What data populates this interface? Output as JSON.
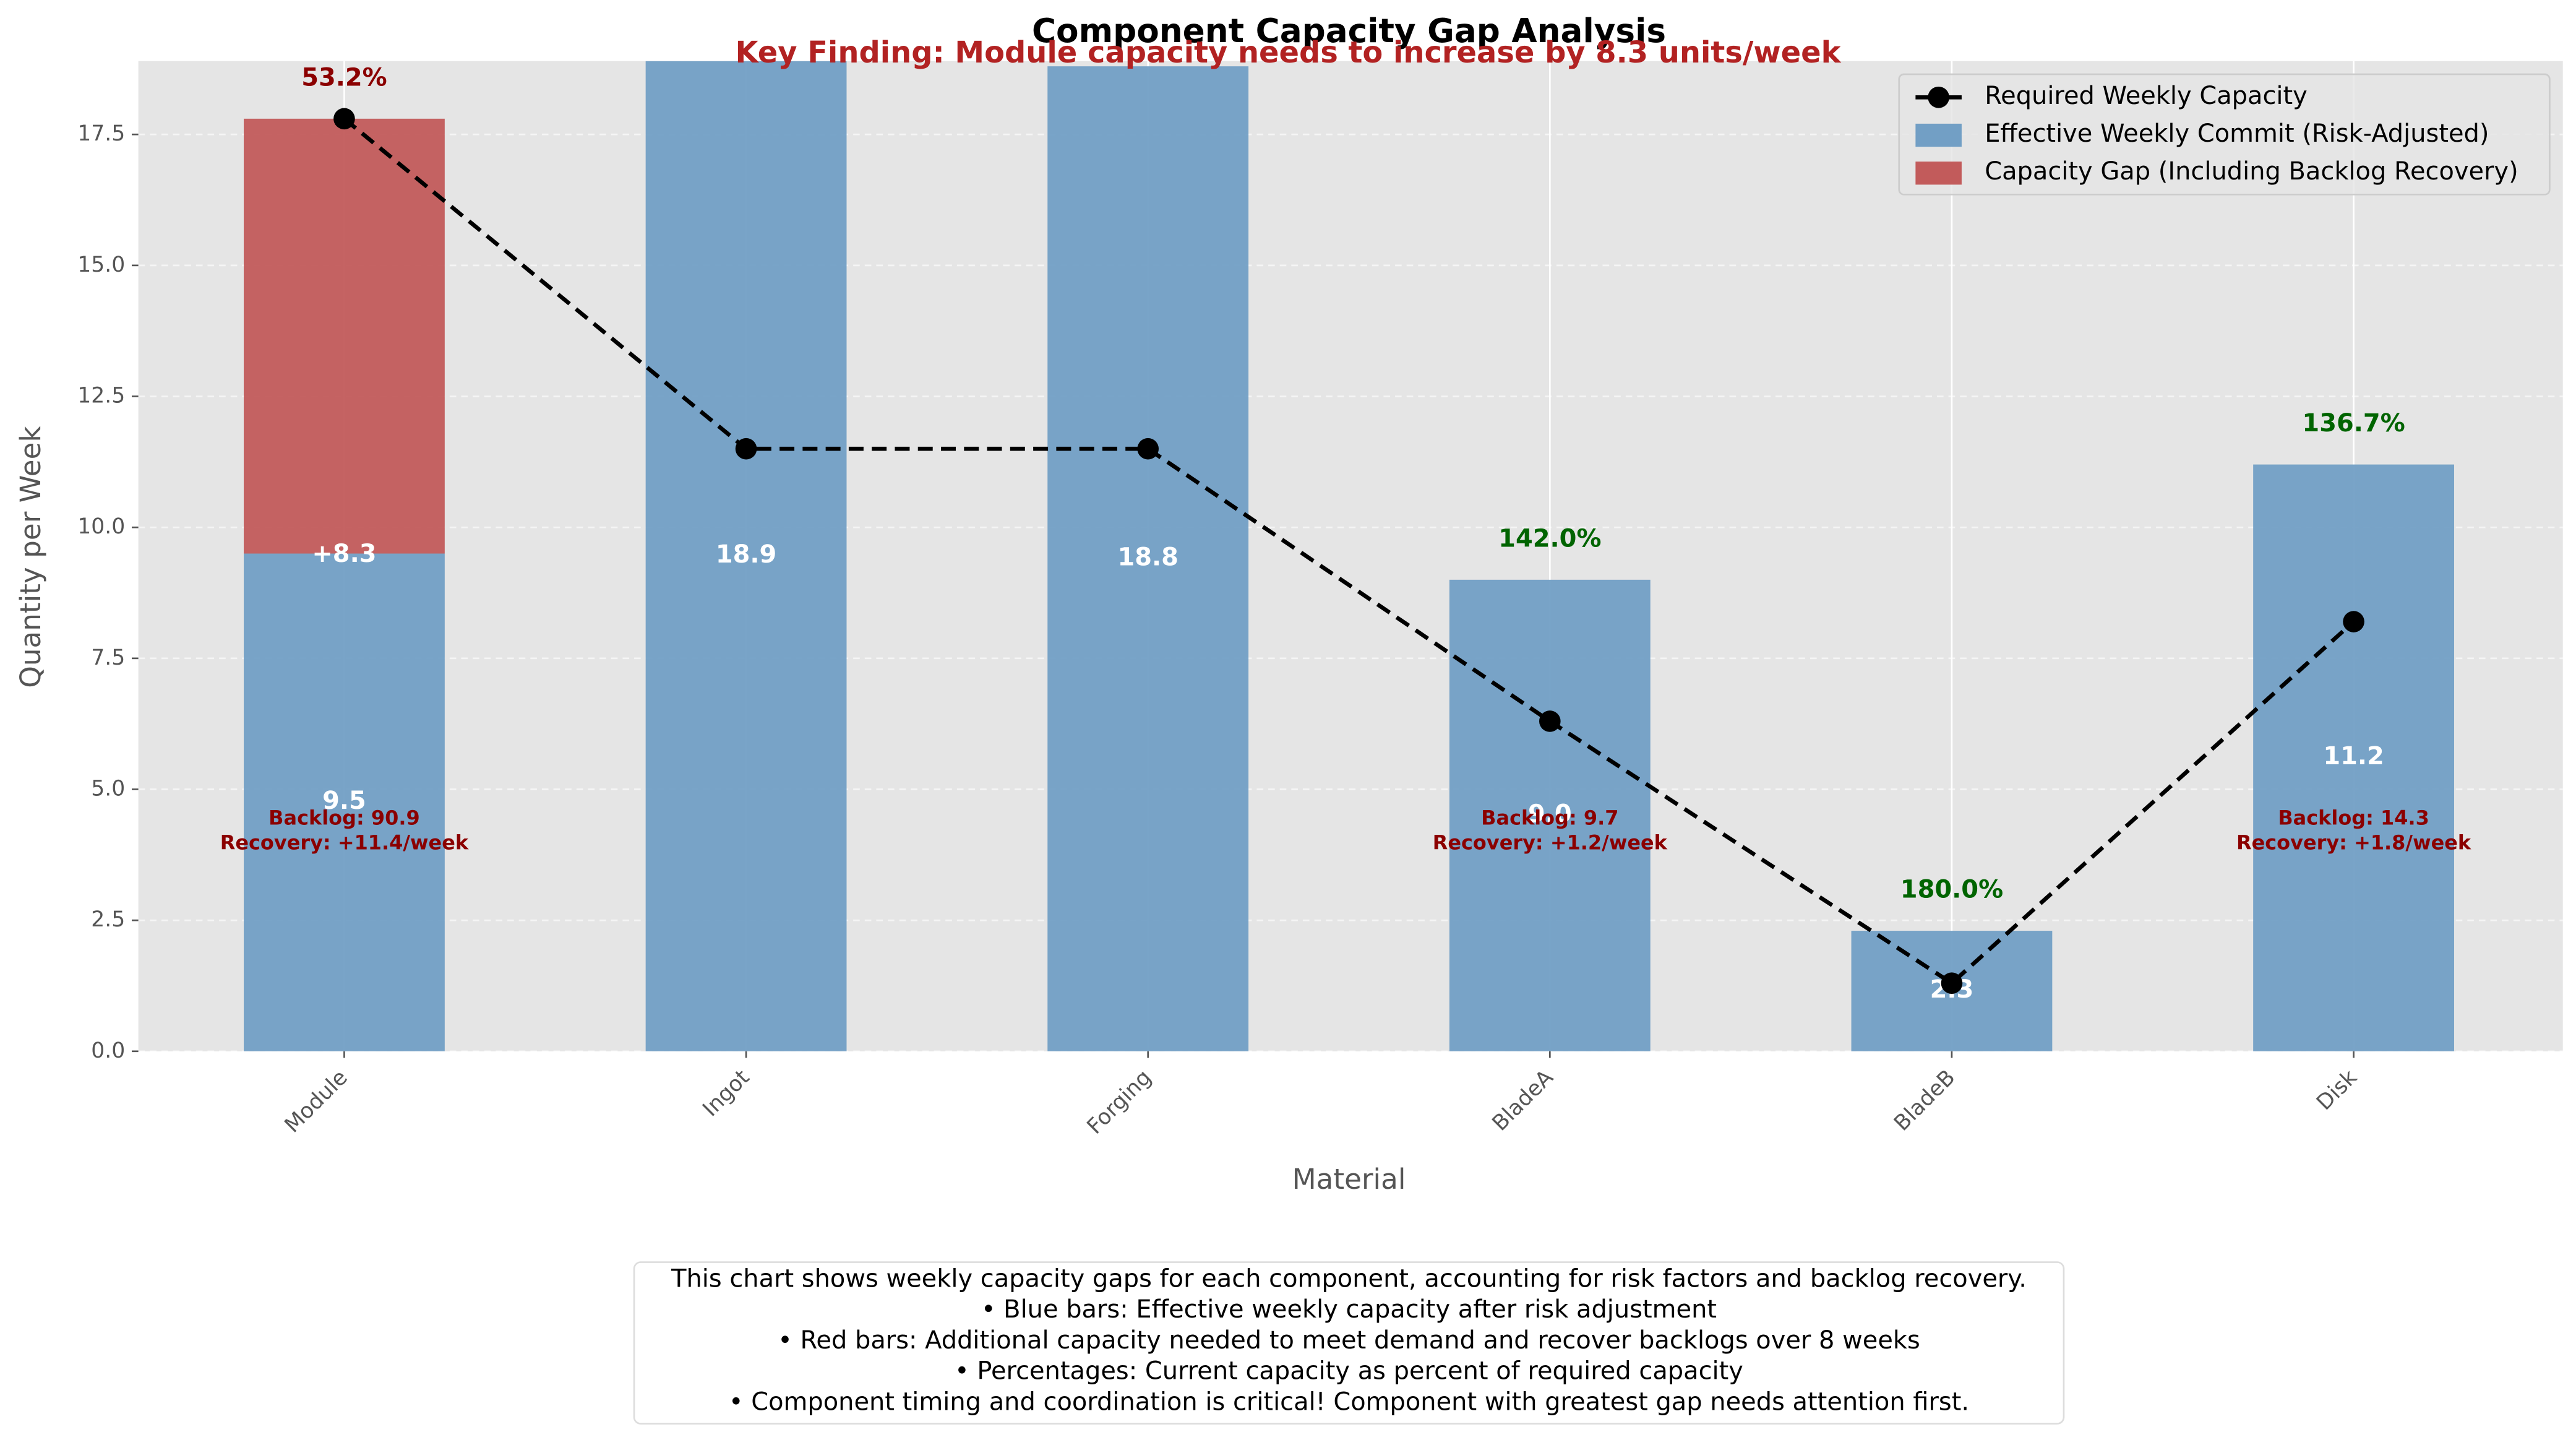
{
  "chart_data": {
    "type": "bar",
    "title": "Component Capacity Gap Analysis",
    "subtitle": "Key Finding: Module capacity needs to increase by 8.3 units/week",
    "x_label": "Material",
    "y_label": "Quantity per Week",
    "categories": [
      "Module",
      "Ingot",
      "Forging",
      "BladeA",
      "BladeB",
      "Disk"
    ],
    "series": [
      {
        "name": "Required Weekly Capacity",
        "type": "line",
        "color": "#000000",
        "values": [
          17.8,
          11.5,
          11.5,
          6.3,
          1.3,
          8.2
        ]
      },
      {
        "name": "Effective Weekly Commit (Risk-Adjusted)",
        "type": "bar",
        "color": "#729fc5",
        "values": [
          9.5,
          18.9,
          18.8,
          9.0,
          2.3,
          11.2
        ],
        "value_labels": [
          "9.5",
          "18.9",
          "18.8",
          "9.0",
          "2.3",
          "11.2"
        ]
      },
      {
        "name": "Capacity Gap (Including Backlog Recovery)",
        "type": "bar",
        "color": "#c25b5b",
        "values": [
          8.3,
          null,
          null,
          null,
          null,
          null
        ],
        "value_labels": [
          "+8.3",
          null,
          null,
          null,
          null,
          null
        ]
      }
    ],
    "percent_labels": [
      "53.2%",
      null,
      null,
      "142.0%",
      "180.0%",
      "136.7%"
    ],
    "percent_label_colors": [
      "#8b0000",
      null,
      null,
      "#006400",
      "#006400",
      "#006400"
    ],
    "backlog_notes": [
      [
        "Backlog: 90.9",
        "Recovery: +11.4/week"
      ],
      null,
      null,
      [
        "Backlog: 9.7",
        "Recovery: +1.2/week"
      ],
      null,
      [
        "Backlog: 14.3",
        "Recovery: +1.8/week"
      ]
    ],
    "ylim": [
      0,
      18.9
    ],
    "yticks": [
      {
        "value": 0,
        "label": "0.0"
      },
      2.5,
      {
        "value": 5,
        "label": "5.0"
      },
      7.5,
      {
        "value": 10,
        "label": "10.0"
      },
      12.5,
      {
        "value": 15,
        "label": "15.0"
      },
      17.5
    ],
    "grid": true,
    "legend": "upper right",
    "footnote": [
      "This chart shows weekly capacity gaps for each component, accounting for risk factors and backlog recovery.",
      "• Blue bars: Effective weekly capacity after risk adjustment",
      "• Red bars: Additional capacity needed to meet demand and recover backlogs over 8 weeks",
      "• Percentages: Current capacity as percent of required capacity",
      "• Component timing and coordination is critical! Component with greatest gap needs attention first."
    ]
  }
}
